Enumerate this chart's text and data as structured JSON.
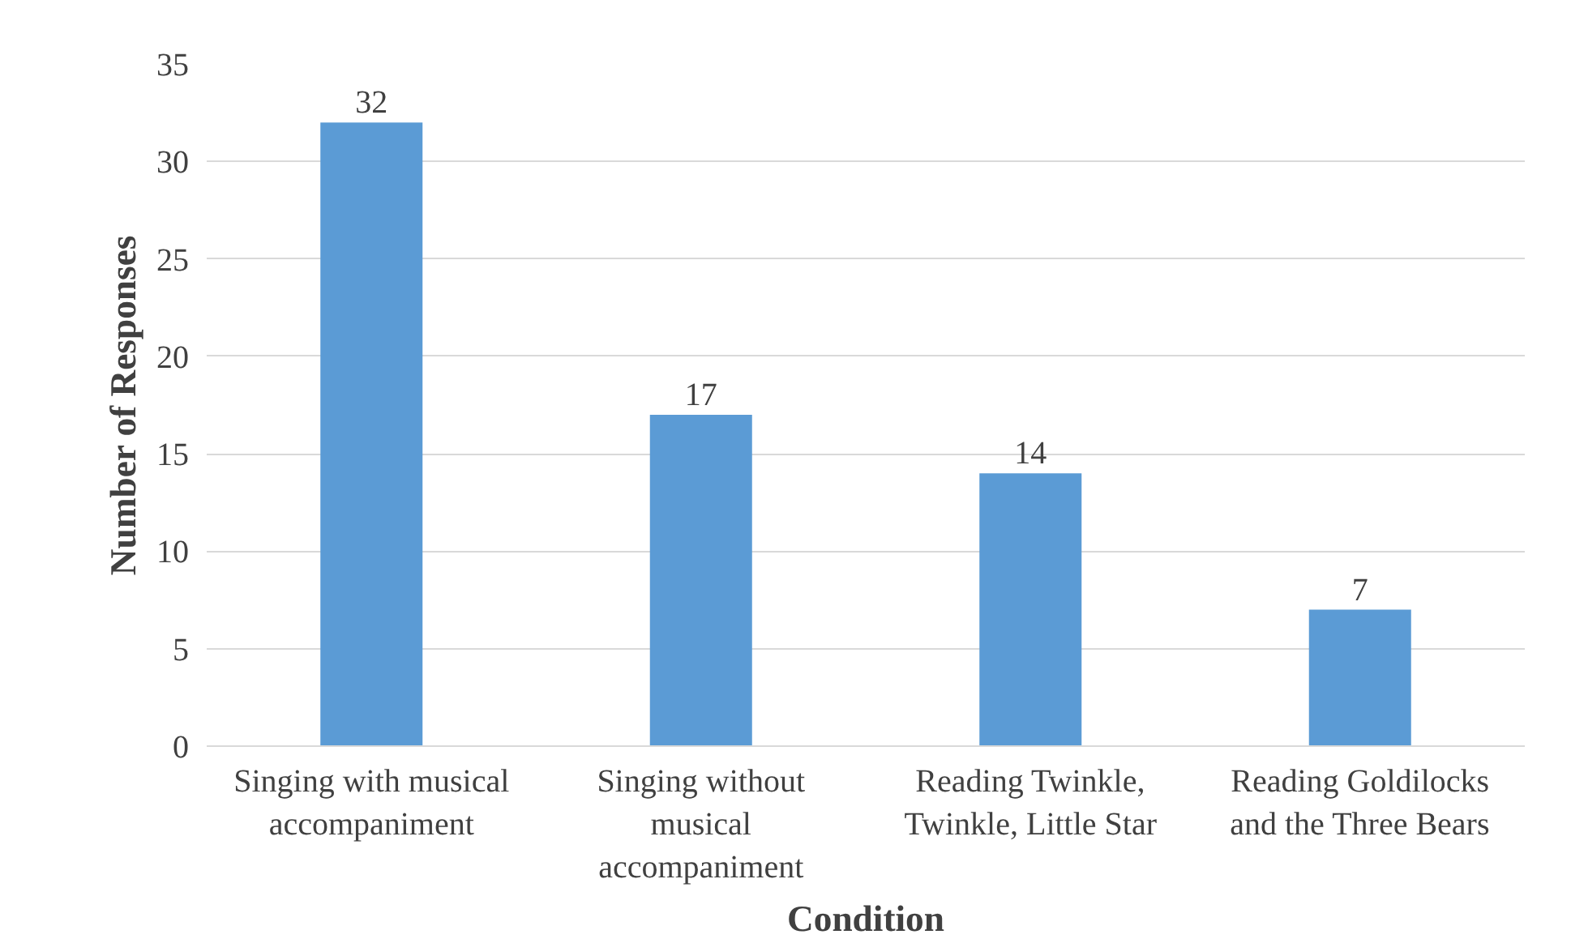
{
  "chart_data": {
    "type": "bar",
    "xlabel": "Condition",
    "ylabel": "Number of Responses",
    "categories": [
      "Singing with musical accompaniment",
      "Singing without musical accompaniment",
      "Reading Twinkle, Twinkle, Little Star",
      "Reading Goldilocks and the Three Bears"
    ],
    "values": [
      32,
      17,
      14,
      7
    ],
    "color": "#5b9bd5",
    "ylim": [
      0,
      35
    ],
    "yticks": [
      0,
      5,
      10,
      15,
      20,
      25,
      30,
      35
    ],
    "grid": "y",
    "data_labels": true
  }
}
